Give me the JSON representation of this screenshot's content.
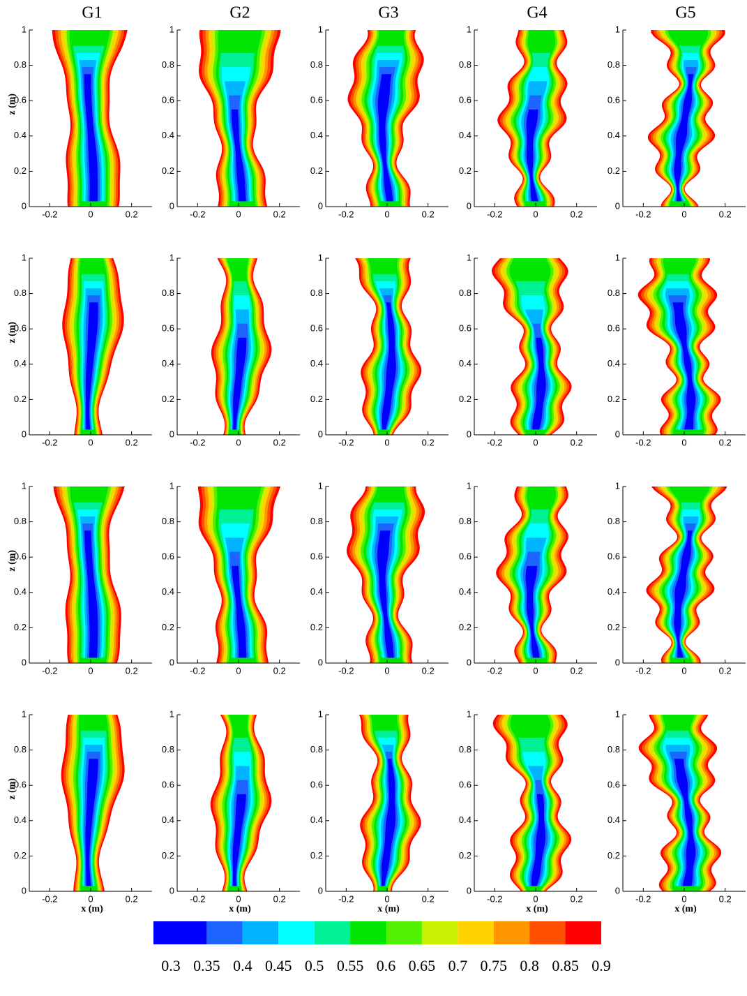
{
  "chart_data": {
    "type": "contour-grid",
    "column_titles": [
      "G1",
      "G2",
      "G3",
      "G4",
      "G5"
    ],
    "xlabel": "x (m)",
    "ylabel": "z (m)",
    "xlim": [
      -0.3,
      0.3
    ],
    "xticks": [
      -0.2,
      0,
      0.2
    ],
    "ylim": [
      0,
      1
    ],
    "yticks": [
      0,
      0.2,
      0.4,
      0.6,
      0.8,
      1
    ],
    "colorbar": {
      "levels": [
        0.3,
        0.35,
        0.4,
        0.45,
        0.5,
        0.55,
        0.6,
        0.65,
        0.7,
        0.75,
        0.8,
        0.85,
        0.9
      ],
      "colors": [
        "#0000ff",
        "#1e64ff",
        "#00b4ff",
        "#00ffff",
        "#00f096",
        "#00e600",
        "#50f000",
        "#c8f000",
        "#ffd200",
        "#ff9600",
        "#ff5000",
        "#ff0000"
      ]
    }
  }
}
